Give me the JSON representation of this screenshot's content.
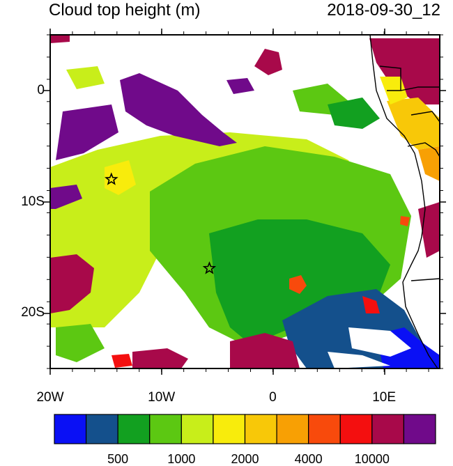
{
  "header": {
    "title": "Cloud top height (m)",
    "datetime": "2018-09-30_12"
  },
  "map": {
    "lon_ticks": [
      {
        "lon": -20,
        "label": "20W"
      },
      {
        "lon": -10,
        "label": "10W"
      },
      {
        "lon": 0,
        "label": "0"
      },
      {
        "lon": 10,
        "label": "10E"
      }
    ],
    "lat_ticks": [
      {
        "lat": 0,
        "label": "0"
      },
      {
        "lat": -10,
        "label": "10S"
      },
      {
        "lat": -20,
        "label": "20S"
      }
    ],
    "lon_range": [
      -20,
      15
    ],
    "lat_range": [
      -25,
      5
    ],
    "markers": [
      {
        "type": "star",
        "lon": -14.5,
        "lat": -8.0
      },
      {
        "type": "star",
        "lon": -5.7,
        "lat": -16.0
      }
    ]
  },
  "legend": {
    "colors": [
      "#0a10f5",
      "#14508c",
      "#12a020",
      "#5cc812",
      "#c8ee1a",
      "#f8ec0c",
      "#f8c808",
      "#f8a004",
      "#f84a0c",
      "#f40f0f",
      "#a8094a",
      "#700a8a"
    ],
    "labels": [
      "500",
      "1000",
      "2000",
      "4000",
      "10000"
    ]
  }
}
